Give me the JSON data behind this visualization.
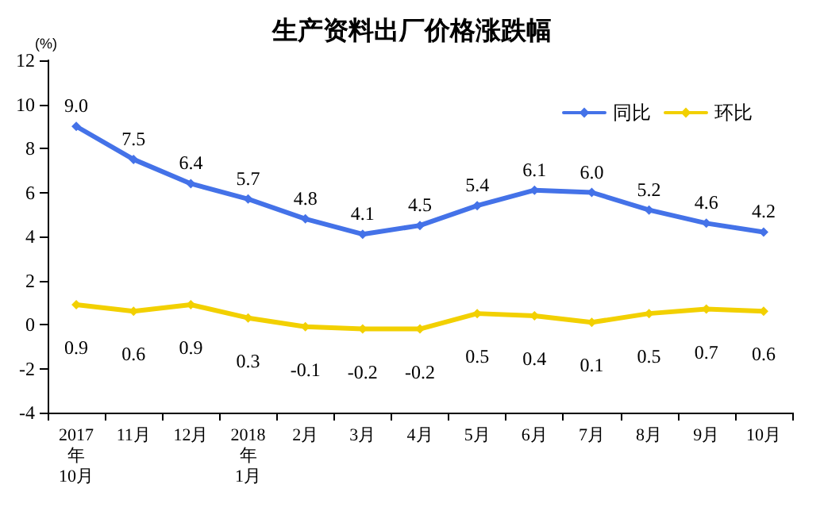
{
  "chart_data": {
    "type": "line",
    "title": "生产资料出厂价格涨跌幅",
    "ylabel": "(%)",
    "categories": [
      "2017\n年\n10月",
      "11月",
      "12月",
      "2018\n年\n1月",
      "2月",
      "3月",
      "4月",
      "5月",
      "6月",
      "7月",
      "8月",
      "9月",
      "10月"
    ],
    "series": [
      {
        "name": "同比",
        "color": "#4472e8",
        "values": [
          9.0,
          7.5,
          6.4,
          5.7,
          4.8,
          4.1,
          4.5,
          5.4,
          6.1,
          6.0,
          5.2,
          4.6,
          4.2
        ],
        "value_labels": [
          "9.0",
          "7.5",
          "6.4",
          "5.7",
          "4.8",
          "4.1",
          "4.5",
          "5.4",
          "6.1",
          "6.0",
          "5.2",
          "4.6",
          "4.2"
        ]
      },
      {
        "name": "环比",
        "color": "#f2d000",
        "values": [
          0.9,
          0.6,
          0.9,
          0.3,
          -0.1,
          -0.2,
          -0.2,
          0.5,
          0.4,
          0.1,
          0.5,
          0.7,
          0.6
        ],
        "value_labels": [
          "0.9",
          "0.6",
          "0.9",
          "0.3",
          "-0.1",
          "-0.2",
          "-0.2",
          "0.5",
          "0.4",
          "0.1",
          "0.5",
          "0.7",
          "0.6"
        ]
      }
    ],
    "ylim": [
      -4,
      12
    ],
    "yticks": [
      -4,
      -2,
      0,
      2,
      4,
      6,
      8,
      10,
      12
    ],
    "grid": false,
    "legend": "top right",
    "marker": "diamond",
    "line_style": "solid"
  }
}
